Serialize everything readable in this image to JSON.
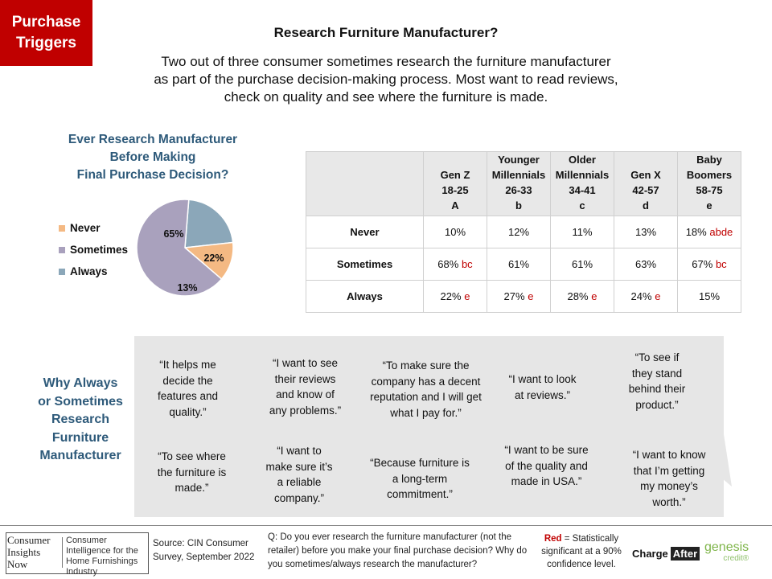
{
  "header": {
    "tag_line1": "Purchase",
    "tag_line2": "Triggers",
    "title": "Research Furniture Manufacturer?",
    "intro": "Two out of three consumer sometimes research the furniture manufacturer as part of the purchase decision-making process. Most want to read reviews, check on quality and see where the furniture is made."
  },
  "colors": {
    "tag_bg": "#c00000",
    "heading_blue": "#2e5a7a",
    "never": "#f4b983",
    "sometimes": "#a9a1bd",
    "always": "#8ba7b9",
    "significance_red": "#c00000"
  },
  "chart_data": [
    {
      "type": "pie",
      "title_lines": [
        "Ever Research Manufacturer",
        "Before Making",
        "Final Purchase Decision?"
      ],
      "legend": [
        "Never",
        "Sometimes",
        "Always"
      ],
      "values": [
        13,
        65,
        22
      ],
      "value_labels": [
        "13%",
        "65%",
        "22%"
      ]
    },
    {
      "type": "table",
      "columns": [
        {
          "lines": [
            "Gen Z",
            "18-25",
            "A"
          ]
        },
        {
          "lines": [
            "Younger",
            "Millennials",
            "26-33",
            "b"
          ]
        },
        {
          "lines": [
            "Older",
            "Millennials",
            "34-41",
            "c"
          ]
        },
        {
          "lines": [
            "Gen X",
            "42-57",
            "d"
          ]
        },
        {
          "lines": [
            "Baby",
            "Boomers",
            "58-75",
            "e"
          ]
        }
      ],
      "rows": [
        {
          "label": "Never",
          "cells": [
            {
              "value": "10%",
              "sig": ""
            },
            {
              "value": "12%",
              "sig": ""
            },
            {
              "value": "11%",
              "sig": ""
            },
            {
              "value": "13%",
              "sig": ""
            },
            {
              "value": "18%",
              "sig": "abde"
            }
          ]
        },
        {
          "label": "Sometimes",
          "cells": [
            {
              "value": "68%",
              "sig": "bc"
            },
            {
              "value": "61%",
              "sig": ""
            },
            {
              "value": "61%",
              "sig": ""
            },
            {
              "value": "63%",
              "sig": ""
            },
            {
              "value": "67%",
              "sig": "bc"
            }
          ]
        },
        {
          "label": "Always",
          "cells": [
            {
              "value": "22%",
              "sig": "e"
            },
            {
              "value": "27%",
              "sig": "e"
            },
            {
              "value": "28%",
              "sig": "e"
            },
            {
              "value": "24%",
              "sig": "e"
            },
            {
              "value": "15%",
              "sig": ""
            }
          ]
        }
      ]
    }
  ],
  "why": {
    "heading_lines": [
      "Why Always",
      "or Sometimes",
      "Research",
      "Furniture",
      "Manufacturer"
    ],
    "quotes": [
      {
        "lines": [
          "“It helps me",
          "decide the",
          "features and",
          "quality.”"
        ]
      },
      {
        "lines": [
          "“I want to see",
          "their reviews",
          "and know of",
          "any problems.”"
        ]
      },
      {
        "lines": [
          "“To make sure the",
          "company has a decent",
          "reputation and I will get",
          "what I pay for.”"
        ]
      },
      {
        "lines": [
          "“I want to look",
          "at reviews.”"
        ]
      },
      {
        "lines": [
          "“To see if",
          "they stand",
          "behind their",
          "product.”"
        ]
      },
      {
        "lines": [
          "“To see where",
          "the furniture  is",
          "made.”"
        ]
      },
      {
        "lines": [
          "“I want to",
          "make sure it’s",
          "a reliable",
          "company.”"
        ]
      },
      {
        "lines": [
          "“Because furniture is",
          "a long-term",
          "commitment.”"
        ]
      },
      {
        "lines": [
          "“I want to be sure",
          "of the quality and",
          "made in USA.”"
        ]
      },
      {
        "lines": [
          "“I want to know",
          "that I’m getting",
          "my money’s",
          "worth.”"
        ]
      }
    ]
  },
  "footer": {
    "logo_left_lines": [
      "Consumer",
      "Insights",
      "Now"
    ],
    "logo_right": "Consumer Intelligence for the Home Furnishings Industry",
    "source": "Source: CIN Consumer Survey, September  2022",
    "question": "Q: Do you ever research the furniture manufacturer (not the retailer) before you make your final purchase decision? Why do you sometimes/always research the manufacturer?",
    "sig_red": "Red",
    "sig_rest": "= Statistically significant at a 90% confidence level.",
    "chargeafter_1": "Charge",
    "chargeafter_2": "After",
    "genesis": "genesis",
    "genesis_sub": "credit®"
  }
}
